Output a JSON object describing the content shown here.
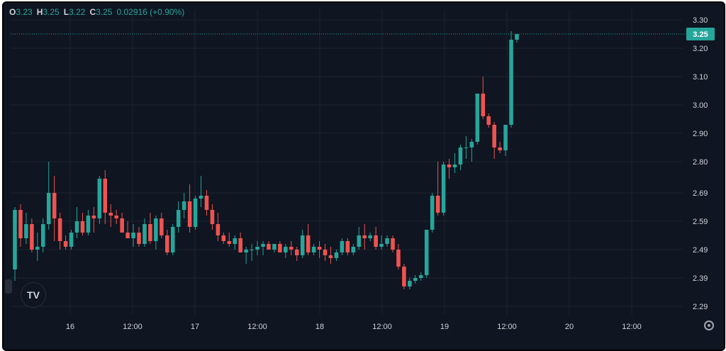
{
  "header": {
    "open_label": "O",
    "open_value": "3.23",
    "high_label": "H",
    "high_value": "3.25",
    "low_label": "L",
    "low_value": "3.22",
    "close_label": "C",
    "close_value": "3.25",
    "change": "0.02916 (+0.90%)"
  },
  "colors": {
    "up": "#26a69a",
    "down": "#ef5350",
    "background": "#0f1521",
    "grid": "#1c2230",
    "text": "#d1d4dc"
  },
  "icons": {
    "logo": "tradingview-logo-icon",
    "settings": "gear-icon"
  },
  "logo_text": "TV",
  "chart_data": {
    "type": "candlestick",
    "y_ticks": [
      "3.30",
      "3.20",
      "3.10",
      "3.00",
      "2.90",
      "2.80",
      "2.69",
      "2.59",
      "2.49",
      "2.39",
      "2.29"
    ],
    "x_ticks": [
      "16",
      "12:00",
      "17",
      "12:00",
      "18",
      "12:00",
      "19",
      "12:00",
      "20",
      "12:00"
    ],
    "ylim": [
      2.26,
      3.31
    ],
    "last_price": "3.25",
    "candles": [
      [
        2.42,
        2.64,
        2.38,
        2.63
      ],
      [
        2.63,
        2.65,
        2.5,
        2.53
      ],
      [
        2.53,
        2.62,
        2.51,
        2.58
      ],
      [
        2.58,
        2.6,
        2.48,
        2.49
      ],
      [
        2.49,
        2.55,
        2.45,
        2.5
      ],
      [
        2.5,
        2.6,
        2.48,
        2.58
      ],
      [
        2.58,
        2.8,
        2.56,
        2.69
      ],
      [
        2.69,
        2.75,
        2.52,
        2.6
      ],
      [
        2.6,
        2.62,
        2.49,
        2.52
      ],
      [
        2.52,
        2.54,
        2.49,
        2.5
      ],
      [
        2.5,
        2.56,
        2.49,
        2.55
      ],
      [
        2.55,
        2.64,
        2.53,
        2.59
      ],
      [
        2.59,
        2.62,
        2.54,
        2.55
      ],
      [
        2.55,
        2.63,
        2.54,
        2.61
      ],
      [
        2.61,
        2.64,
        2.55,
        2.6
      ],
      [
        2.6,
        2.75,
        2.58,
        2.74
      ],
      [
        2.74,
        2.77,
        2.58,
        2.62
      ],
      [
        2.62,
        2.65,
        2.57,
        2.61
      ],
      [
        2.61,
        2.63,
        2.58,
        2.6
      ],
      [
        2.6,
        2.62,
        2.55,
        2.55
      ],
      [
        2.55,
        2.59,
        2.53,
        2.53
      ],
      [
        2.53,
        2.58,
        2.5,
        2.55
      ],
      [
        2.55,
        2.57,
        2.5,
        2.51
      ],
      [
        2.51,
        2.6,
        2.5,
        2.58
      ],
      [
        2.58,
        2.62,
        2.51,
        2.52
      ],
      [
        2.52,
        2.61,
        2.49,
        2.6
      ],
      [
        2.6,
        2.62,
        2.53,
        2.54
      ],
      [
        2.54,
        2.56,
        2.47,
        2.48
      ],
      [
        2.48,
        2.58,
        2.47,
        2.57
      ],
      [
        2.57,
        2.66,
        2.55,
        2.63
      ],
      [
        2.63,
        2.69,
        2.6,
        2.66
      ],
      [
        2.66,
        2.72,
        2.55,
        2.57
      ],
      [
        2.57,
        2.68,
        2.56,
        2.67
      ],
      [
        2.67,
        2.75,
        2.64,
        2.68
      ],
      [
        2.68,
        2.7,
        2.61,
        2.63
      ],
      [
        2.63,
        2.65,
        2.56,
        2.58
      ],
      [
        2.58,
        2.62,
        2.52,
        2.54
      ],
      [
        2.54,
        2.55,
        2.51,
        2.52
      ],
      [
        2.52,
        2.55,
        2.5,
        2.51
      ],
      [
        2.51,
        2.54,
        2.49,
        2.53
      ],
      [
        2.53,
        2.55,
        2.48,
        2.48
      ],
      [
        2.48,
        2.5,
        2.44,
        2.49
      ],
      [
        2.49,
        2.51,
        2.45,
        2.49
      ],
      [
        2.49,
        2.52,
        2.47,
        2.5
      ],
      [
        2.5,
        2.52,
        2.47,
        2.51
      ],
      [
        2.51,
        2.52,
        2.49,
        2.49
      ],
      [
        2.49,
        2.51,
        2.48,
        2.51
      ],
      [
        2.51,
        2.52,
        2.48,
        2.48
      ],
      [
        2.48,
        2.51,
        2.46,
        2.5
      ],
      [
        2.5,
        2.52,
        2.47,
        2.49
      ],
      [
        2.49,
        2.5,
        2.45,
        2.47
      ],
      [
        2.47,
        2.56,
        2.46,
        2.54
      ],
      [
        2.54,
        2.58,
        2.47,
        2.48
      ],
      [
        2.48,
        2.51,
        2.47,
        2.5
      ],
      [
        2.5,
        2.52,
        2.46,
        2.49
      ],
      [
        2.49,
        2.51,
        2.45,
        2.47
      ],
      [
        2.47,
        2.5,
        2.44,
        2.46
      ],
      [
        2.46,
        2.49,
        2.45,
        2.48
      ],
      [
        2.48,
        2.53,
        2.47,
        2.52
      ],
      [
        2.52,
        2.53,
        2.47,
        2.48
      ],
      [
        2.48,
        2.51,
        2.47,
        2.5
      ],
      [
        2.5,
        2.57,
        2.49,
        2.54
      ],
      [
        2.54,
        2.58,
        2.49,
        2.53
      ],
      [
        2.53,
        2.55,
        2.52,
        2.54
      ],
      [
        2.54,
        2.57,
        2.49,
        2.5
      ],
      [
        2.5,
        2.54,
        2.49,
        2.51
      ],
      [
        2.51,
        2.54,
        2.5,
        2.53
      ],
      [
        2.53,
        2.54,
        2.48,
        2.49
      ],
      [
        2.49,
        2.51,
        2.42,
        2.43
      ],
      [
        2.43,
        2.44,
        2.35,
        2.36
      ],
      [
        2.36,
        2.39,
        2.35,
        2.38
      ],
      [
        2.38,
        2.4,
        2.37,
        2.39
      ],
      [
        2.39,
        2.41,
        2.38,
        2.4
      ],
      [
        2.4,
        2.56,
        2.39,
        2.56
      ],
      [
        2.56,
        2.69,
        2.55,
        2.68
      ],
      [
        2.68,
        2.8,
        2.61,
        2.62
      ],
      [
        2.62,
        2.8,
        2.61,
        2.79
      ],
      [
        2.79,
        2.81,
        2.74,
        2.78
      ],
      [
        2.78,
        2.83,
        2.76,
        2.79
      ],
      [
        2.79,
        2.86,
        2.77,
        2.85
      ],
      [
        2.85,
        2.89,
        2.81,
        2.85
      ],
      [
        2.85,
        2.88,
        2.8,
        2.87
      ],
      [
        2.87,
        3.04,
        2.86,
        3.04
      ],
      [
        3.04,
        3.1,
        2.95,
        2.96
      ],
      [
        2.96,
        2.97,
        2.92,
        2.93
      ],
      [
        2.93,
        2.94,
        2.81,
        2.85
      ],
      [
        2.85,
        2.87,
        2.83,
        2.84
      ],
      [
        2.84,
        2.93,
        2.82,
        2.93
      ],
      [
        2.93,
        3.26,
        2.92,
        3.23
      ],
      [
        3.23,
        3.25,
        3.22,
        3.25
      ]
    ]
  }
}
